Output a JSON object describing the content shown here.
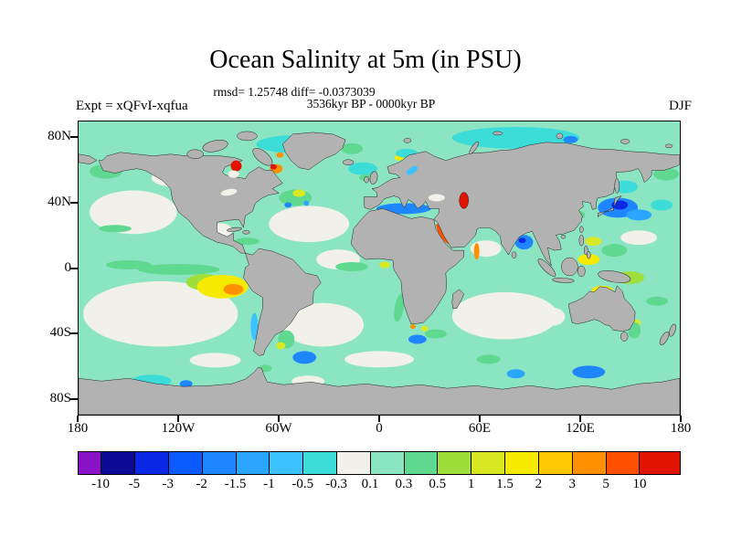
{
  "header": {
    "title": "Ocean Salinity at 5m (in PSU)",
    "stats_line": "rmsd= 1.25748 diff= -0.0373039",
    "period_line": "3536kyr BP - 0000kyr BP",
    "experiment_label": "Expt = xQFvI-xqfua",
    "season_label": "DJF"
  },
  "map": {
    "land_color": "#b2b2b2",
    "ocean_base_color": "#8ce5c2",
    "lat_ticks": [
      {
        "label": "80N",
        "lat": 80
      },
      {
        "label": "40N",
        "lat": 40
      },
      {
        "label": "0",
        "lat": 0
      },
      {
        "label": "40S",
        "lat": -40
      },
      {
        "label": "80S",
        "lat": -80
      }
    ],
    "lon_ticks": [
      {
        "label": "180",
        "lon": -180
      },
      {
        "label": "120W",
        "lon": -120
      },
      {
        "label": "60W",
        "lon": -60
      },
      {
        "label": "0",
        "lon": 0
      },
      {
        "label": "60E",
        "lon": 60
      },
      {
        "label": "120E",
        "lon": 120
      },
      {
        "label": "180",
        "lon": 180
      }
    ]
  },
  "chart_data": {
    "type": "heatmap",
    "title": "Ocean Salinity at 5m (in PSU)",
    "variable": "Ocean salinity anomaly at 5 m depth",
    "units": "PSU",
    "rmsd": 1.25748,
    "diff": -0.0373039,
    "period": "3536kyr BP - 0000kyr BP",
    "season": "DJF",
    "experiment": "xQFvI-xqfua",
    "projection": "equirectangular",
    "lon_range": [
      -180,
      180
    ],
    "lat_range": [
      -90,
      90
    ],
    "grid": false,
    "legend_position": "bottom",
    "colorbar": {
      "boundaries": [
        -10,
        -5,
        -3,
        -2,
        -1.5,
        -1,
        -0.5,
        -0.3,
        0.1,
        0.3,
        0.5,
        1,
        1.5,
        2,
        3,
        5,
        10
      ],
      "tick_labels": [
        "-10",
        "-5",
        "-3",
        "-2",
        "-1.5",
        "-1",
        "-0.5",
        "-0.3",
        "0.1",
        "0.3",
        "0.5",
        "1",
        "1.5",
        "2",
        "3",
        "5",
        "10"
      ],
      "colors": [
        "#8a12c8",
        "#0a0a96",
        "#0a28e6",
        "#0a5aff",
        "#1e87ff",
        "#2aa6ff",
        "#3cc3ff",
        "#3cdcd8",
        "#f1f1e9",
        "#8ce5c2",
        "#5fd98f",
        "#9fdf3c",
        "#d8e823",
        "#f5ea00",
        "#ffc800",
        "#ff9000",
        "#ff5000",
        "#e01400"
      ],
      "widths": [
        0.68,
        1,
        1,
        1,
        1,
        1,
        1,
        1,
        1,
        1,
        1,
        1,
        1,
        1,
        1,
        1,
        1,
        1.22
      ]
    },
    "notable_anomalies": [
      {
        "region": "Caspian Sea",
        "approx_value_psu": "> 5"
      },
      {
        "region": "Foxe Basin / Hudson Strait",
        "approx_value_psu": "3 to 10"
      },
      {
        "region": "Labrador Sea off west Greenland",
        "approx_value_psu": "3 to 5"
      },
      {
        "region": "Northwest Pacific east of Japan",
        "approx_value_psu": "-3 to -1"
      },
      {
        "region": "Mediterranean Sea",
        "approx_value_psu": "-2 to -1"
      },
      {
        "region": "Bay of Bengal",
        "approx_value_psu": "-2 to -0.5"
      },
      {
        "region": "Red Sea",
        "approx_value_psu": "3 to 10"
      },
      {
        "region": "Eastern tropical Pacific off Peru",
        "approx_value_psu": "1 to 3"
      },
      {
        "region": "Maritime Continent / western Pacific",
        "approx_value_psu": "0.5 to 1.5"
      },
      {
        "region": "Subtropical gyres",
        "approx_value_psu": "-0.3 to 0.1"
      },
      {
        "region": "Most mid- and high-latitude ocean",
        "approx_value_psu": "0.1 to 0.3"
      }
    ]
  }
}
